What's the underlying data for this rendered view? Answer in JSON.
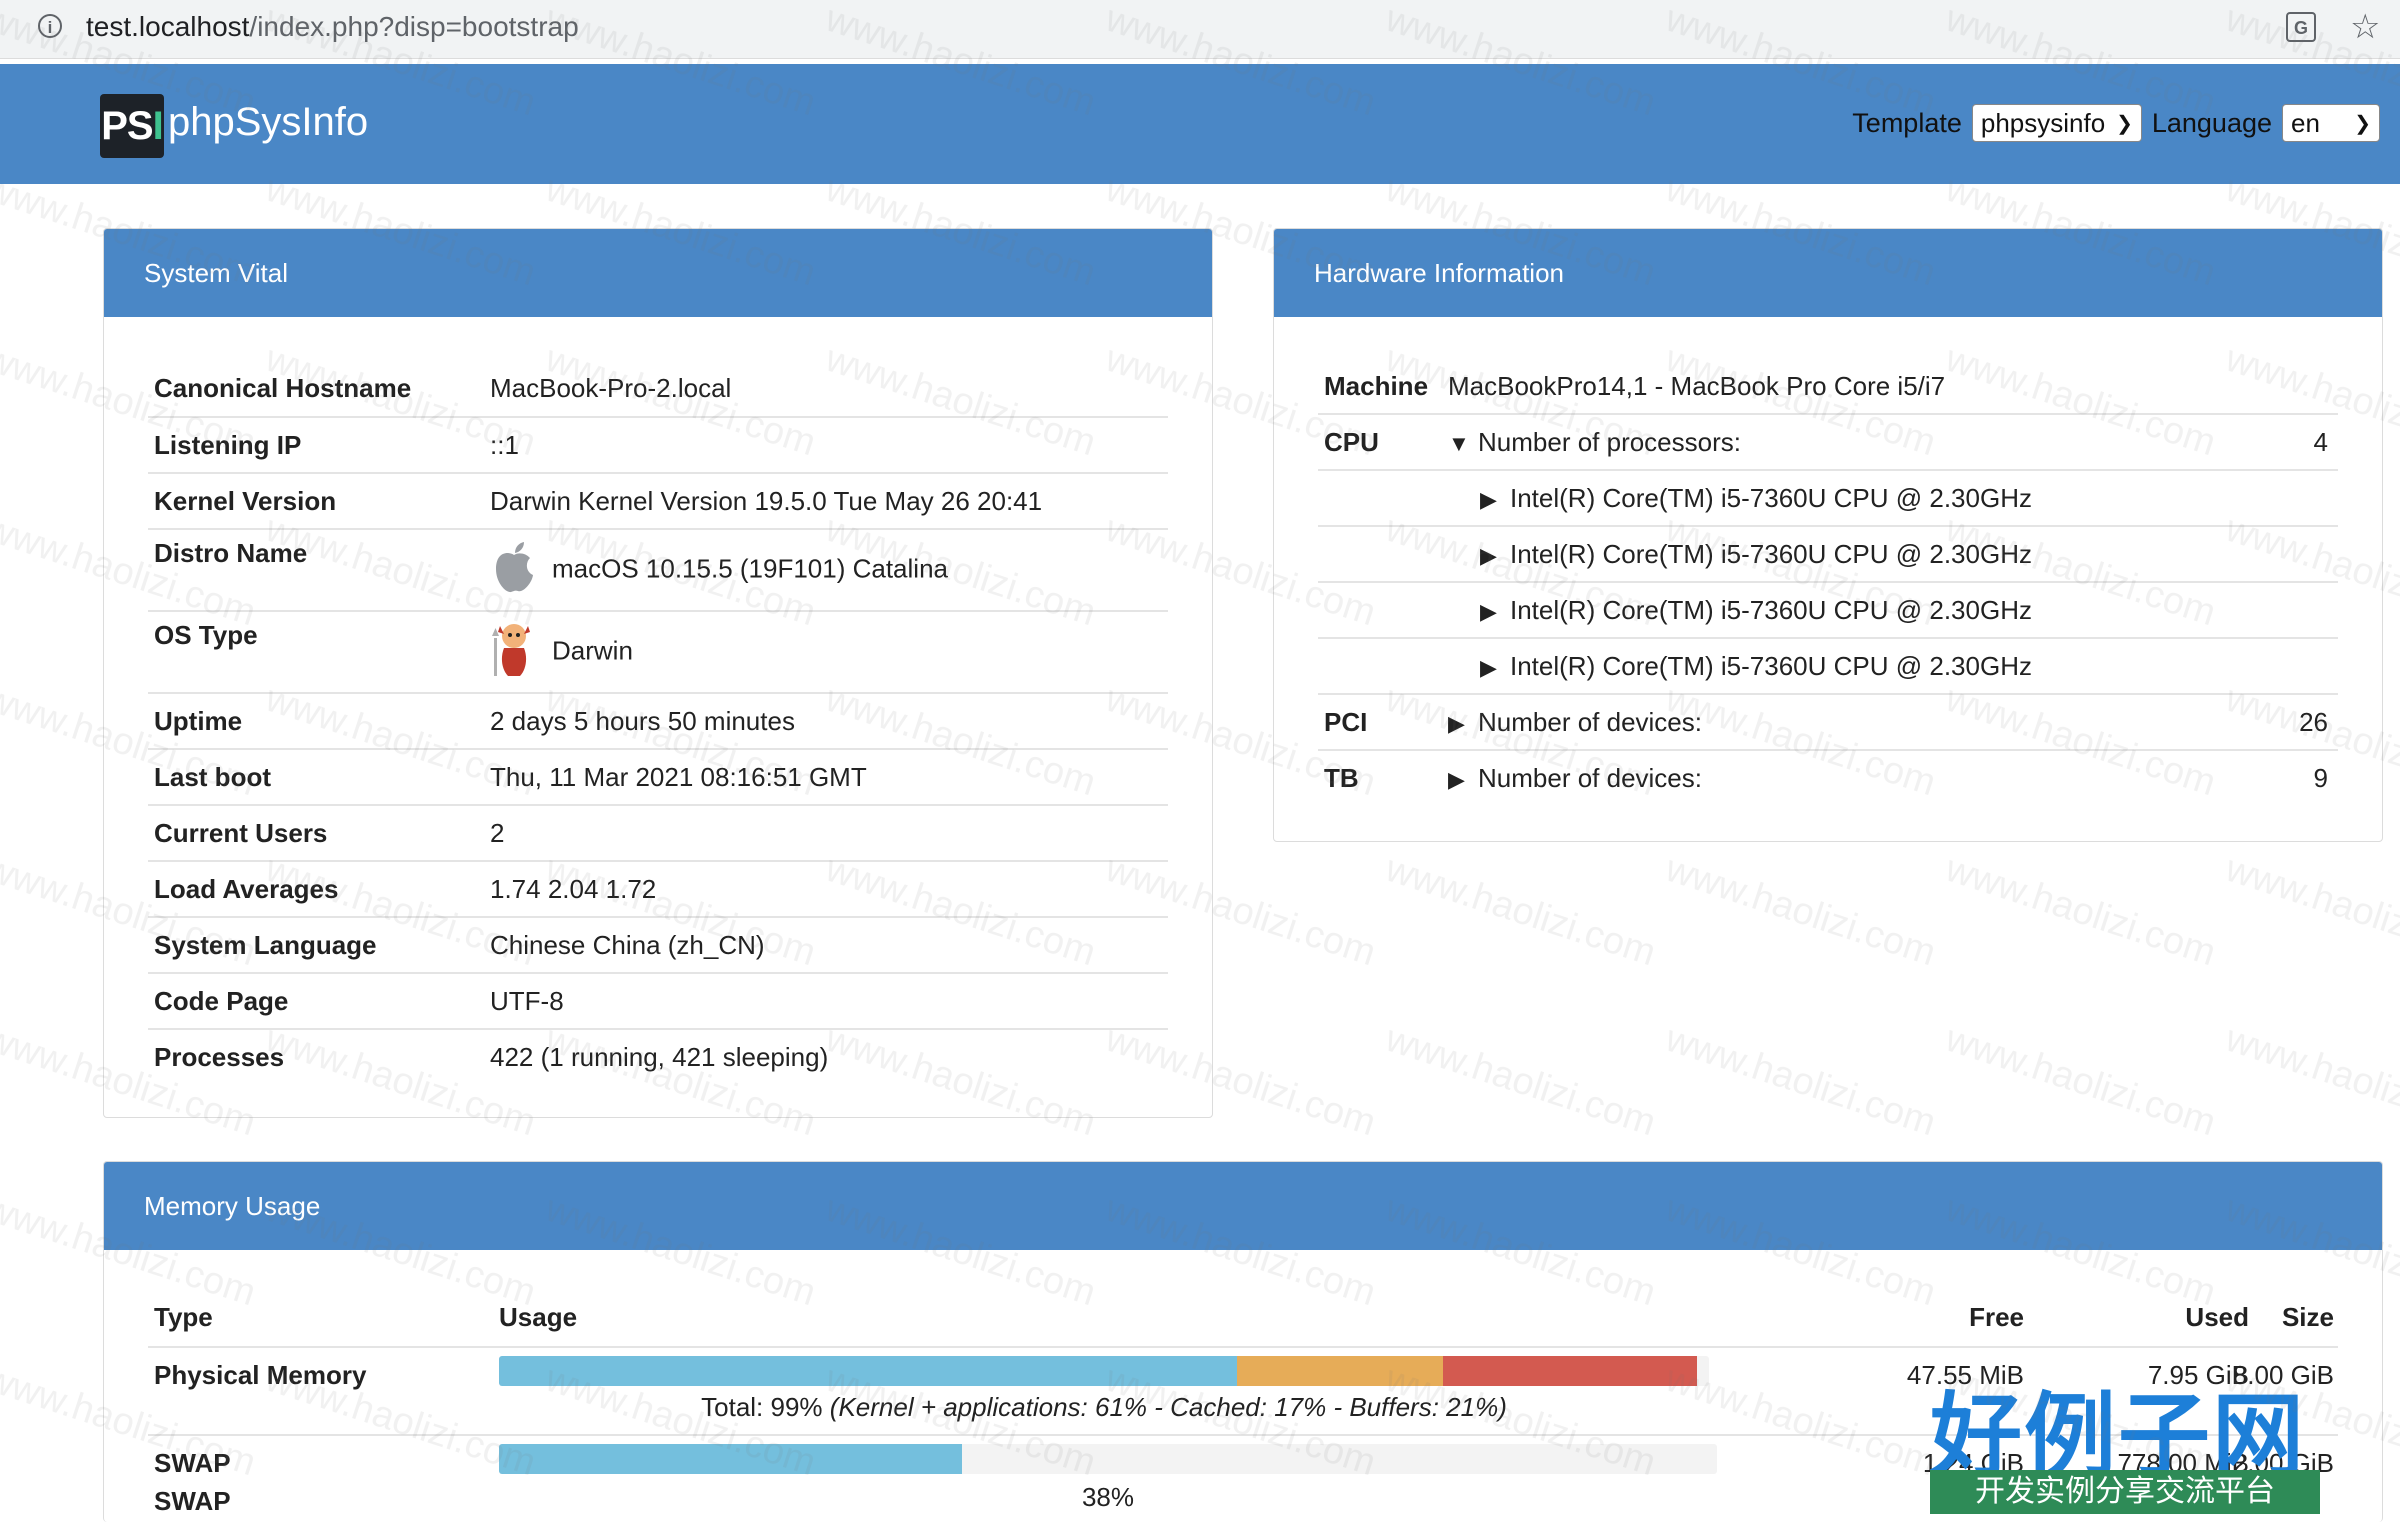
{
  "browser": {
    "url_host": "test.localhost",
    "url_path": "/index.php?disp=bootstrap"
  },
  "navbar": {
    "logo_ps": "PS",
    "logo_i": "I",
    "brand": "phpSysInfo",
    "template_label": "Template",
    "template_value": "phpsysinfo",
    "language_label": "Language",
    "language_value": "en"
  },
  "system_vital": {
    "title": "System Vital",
    "rows": [
      {
        "key": "Canonical Hostname",
        "value": "MacBook-Pro-2.local"
      },
      {
        "key": "Listening IP",
        "value": "::1"
      },
      {
        "key": "Kernel Version",
        "value": "Darwin Kernel Version 19.5.0 Tue May 26 20:41"
      },
      {
        "key": "Distro Name",
        "value": "macOS 10.15.5 (19F101) Catalina",
        "icon": "apple-icon"
      },
      {
        "key": "OS Type",
        "value": "Darwin",
        "icon": "darwin-daemon-icon"
      },
      {
        "key": "Uptime",
        "value": "2 days 5 hours 50 minutes"
      },
      {
        "key": "Last boot",
        "value": "Thu, 11 Mar 2021 08:16:51 GMT"
      },
      {
        "key": "Current Users",
        "value": "2"
      },
      {
        "key": "Load Averages",
        "value": "1.74 2.04 1.72"
      },
      {
        "key": "System Language",
        "value": "Chinese China (zh_CN)"
      },
      {
        "key": "Code Page",
        "value": "UTF-8"
      },
      {
        "key": "Processes",
        "value": "422 (1 running, 421 sleeping)"
      }
    ]
  },
  "hardware": {
    "title": "Hardware Information",
    "machine_key": "Machine",
    "machine_value": "MacBookPro14,1 - MacBook Pro Core i5/i7",
    "cpu_key": "CPU",
    "cpu_label": "Number of processors:",
    "cpu_count": "4",
    "cpus": [
      "Intel(R) Core(TM) i5-7360U CPU @ 2.30GHz",
      "Intel(R) Core(TM) i5-7360U CPU @ 2.30GHz",
      "Intel(R) Core(TM) i5-7360U CPU @ 2.30GHz",
      "Intel(R) Core(TM) i5-7360U CPU @ 2.30GHz"
    ],
    "pci_key": "PCI",
    "pci_label": "Number of devices:",
    "pci_count": "26",
    "tb_key": "TB",
    "tb_label": "Number of devices:",
    "tb_count": "9"
  },
  "memory": {
    "title": "Memory Usage",
    "headers": {
      "type": "Type",
      "usage": "Usage",
      "free": "Free",
      "used": "Used",
      "size": "Size"
    },
    "physical": {
      "type": "Physical Memory",
      "free": "47.55 MiB",
      "used": "7.95 GiB",
      "size": "8.00 GiB",
      "total_prefix": "Total: 99% ",
      "total_detail": "(Kernel + applications: 61% - Cached: 17% - Buffers: 21%)",
      "segments": [
        {
          "name": "kernel-applications",
          "percent": 61,
          "color": "#74bfdd"
        },
        {
          "name": "cached",
          "percent": 17,
          "color": "#e6ac58"
        },
        {
          "name": "buffers",
          "percent": 21,
          "color": "#d35a50"
        }
      ]
    },
    "swap": {
      "type1": "SWAP",
      "type2": "SWAP",
      "free": "1.24 GiB",
      "used": "778.00 MiB",
      "size": "2.00 GiB",
      "percent_label": "38%",
      "percent": 38,
      "color": "#74bfdd"
    }
  },
  "watermark": "www.haolizi.com",
  "corner_logo": {
    "big": "好例子网",
    "small": "开发实例分享交流平台"
  }
}
